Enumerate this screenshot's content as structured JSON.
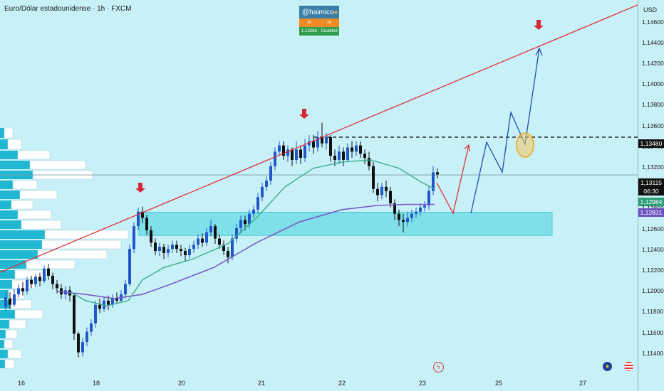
{
  "header": {
    "symbol_title": "Euro/Dólar estadounidense · 1h · FXCM"
  },
  "watermark": {
    "username": "@haimico",
    "row1_left": "1h",
    "row1_right": "1d",
    "row2_left": "1.1326b",
    "row2_right": "Disabled"
  },
  "price_axis": {
    "currency": "USD",
    "ticks": [
      "1,14600",
      "1,14400",
      "1,14200",
      "1,14000",
      "1,13800",
      "1,13600",
      "1,13400",
      "1,13200",
      "1,13000",
      "1,12800",
      "1,12600",
      "1,12400",
      "1,12200",
      "1,12000",
      "1,11800",
      "1,11600",
      "1,11400"
    ],
    "badges": {
      "level_price": "1,13480",
      "last_price": "1,13115",
      "countdown": "06:30",
      "ma_fast": "1,12984",
      "ma_slow": "1,12831"
    }
  },
  "time_axis": {
    "labels": [
      "16",
      "18",
      "20",
      "21",
      "22",
      "23",
      "25",
      "27"
    ]
  },
  "icons": {
    "lightning": "lightning-icon",
    "eu_flag": "eu-flag-icon",
    "us_flag": "us-flag-icon"
  },
  "colors": {
    "background": "#c8f0f7",
    "bull_candle": "#2157c9",
    "bear_candle": "#111111",
    "trendline": "#e0303a",
    "ma_fast": "#3aae8a",
    "ma_slow": "#7a5cc8",
    "zone": "#7fe0ea",
    "projection_red": "#e0303a",
    "projection_blue": "#1f4fb5",
    "highlight_circle": "#f2a81d"
  }
}
